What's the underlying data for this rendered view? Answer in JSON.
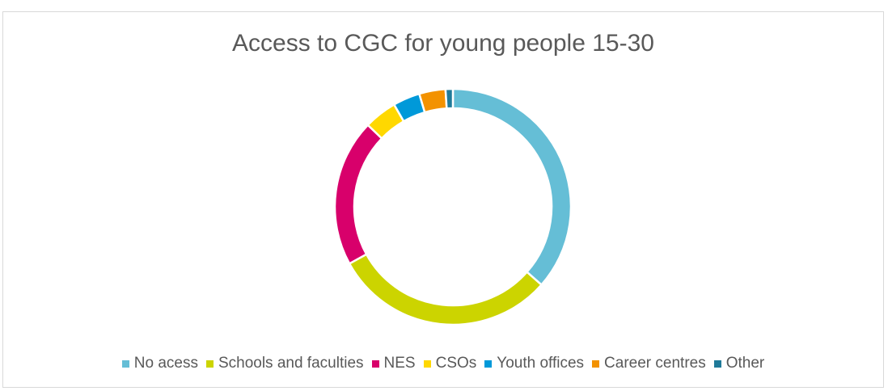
{
  "chart_data": {
    "type": "pie",
    "variant": "doughnut",
    "title": "Access to CGC for young people 15-30",
    "legend_position": "bottom",
    "categories": [
      "No acess",
      "Schools and faculties",
      "NES",
      "CSOs",
      "Youth offices",
      "Career centres",
      "Other"
    ],
    "values": [
      36.5,
      30.5,
      20.2,
      4.5,
      3.7,
      3.6,
      1.0
    ],
    "colors": [
      "#65bed6",
      "#ccd400",
      "#d8006b",
      "#ffd800",
      "#0099d9",
      "#f39200",
      "#1f7a99"
    ]
  }
}
